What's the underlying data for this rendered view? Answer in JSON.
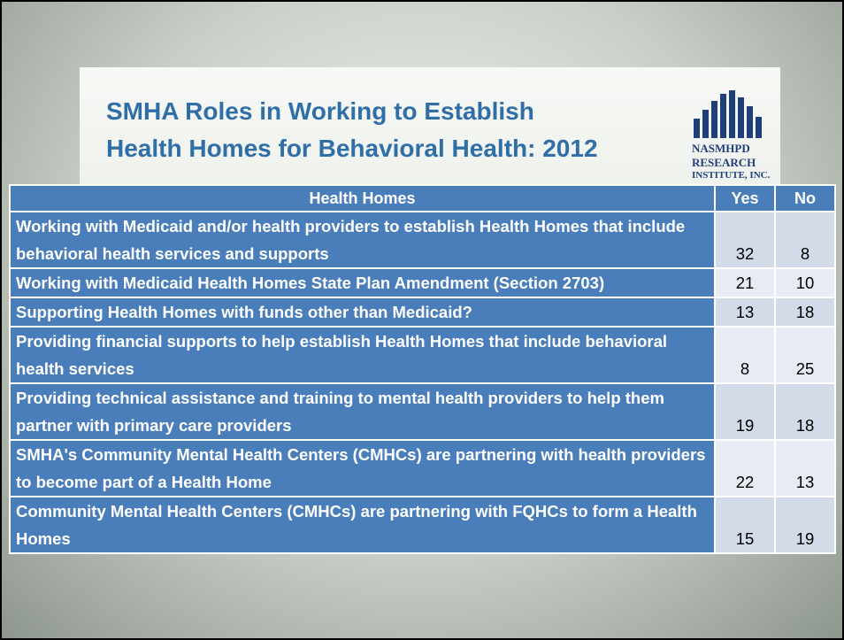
{
  "title": {
    "line1": "SMHA Roles in Working to Establish",
    "line2": "Health Homes for Behavioral Health: 2012"
  },
  "logo": {
    "line1": "NASMHPD",
    "line2": "RESEARCH",
    "line3": "INSTITUTE, INC."
  },
  "table": {
    "header": [
      "Health Homes",
      "Yes",
      "No"
    ],
    "rows": [
      [
        "Working with Medicaid and/or health providers to establish Health Homes that include behavioral health services and supports",
        32,
        8
      ],
      [
        "Working with Medicaid Health Homes State Plan Amendment (Section 2703)",
        21,
        10
      ],
      [
        "Supporting Health Homes  with funds other than Medicaid?",
        13,
        18
      ],
      [
        "Providing financial supports to help establish Health Homes that include behavioral health services",
        8,
        25
      ],
      [
        "Providing technical assistance and training to mental health providers to help them partner with primary care providers",
        19,
        18
      ],
      [
        "SMHA's Community Mental Health Centers (CMHCs) are partnering with health providers to become part of a Health Home",
        22,
        13
      ],
      [
        "Community Mental Health Centers (CMHCs) are partnering with FQHCs to form a Health Homes",
        15,
        19
      ]
    ]
  }
}
